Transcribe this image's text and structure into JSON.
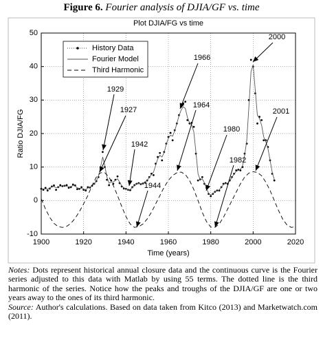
{
  "figure": {
    "label": "Figure 6.",
    "caption": "Fourier analysis of DJIA/GF vs. time"
  },
  "chart_data": {
    "type": "line",
    "title": "Plot DJIA/FG vs time",
    "xlabel": "Time (years)",
    "ylabel": "Ratio DJIA/FG",
    "x": [
      1900,
      1901,
      1902,
      1903,
      1904,
      1905,
      1906,
      1907,
      1908,
      1909,
      1910,
      1911,
      1912,
      1913,
      1914,
      1915,
      1916,
      1917,
      1918,
      1919,
      1920,
      1921,
      1922,
      1923,
      1924,
      1925,
      1926,
      1927,
      1928,
      1929,
      1930,
      1931,
      1932,
      1933,
      1934,
      1935,
      1936,
      1937,
      1938,
      1939,
      1940,
      1941,
      1942,
      1943,
      1944,
      1945,
      1946,
      1947,
      1948,
      1949,
      1950,
      1951,
      1952,
      1953,
      1954,
      1955,
      1956,
      1957,
      1958,
      1959,
      1960,
      1961,
      1962,
      1963,
      1964,
      1965,
      1966,
      1967,
      1968,
      1969,
      1970,
      1971,
      1972,
      1973,
      1974,
      1975,
      1976,
      1977,
      1978,
      1979,
      1980,
      1981,
      1982,
      1983,
      1984,
      1985,
      1986,
      1987,
      1988,
      1989,
      1990,
      1991,
      1992,
      1993,
      1994,
      1995,
      1996,
      1997,
      1998,
      1999,
      2000,
      2001,
      2002,
      2003,
      2004,
      2005,
      2006,
      2007,
      2008,
      2009,
      2010
    ],
    "series": [
      {
        "name": "History Data",
        "color": "#000000",
        "style": "markers",
        "values": [
          3.5,
          3.2,
          3.8,
          3.0,
          3.6,
          4.2,
          4.5,
          3.2,
          4.0,
          4.6,
          4.3,
          4.4,
          4.6,
          3.8,
          4.0,
          4.8,
          4.5,
          3.4,
          3.5,
          4.0,
          3.2,
          3.0,
          4.0,
          3.9,
          4.4,
          5.0,
          5.8,
          7.0,
          9.8,
          14.5,
          10.0,
          6.2,
          4.6,
          6.0,
          5.0,
          6.2,
          7.2,
          5.2,
          4.2,
          3.6,
          3.5,
          3.2,
          3.1,
          4.0,
          4.6,
          5.0,
          5.2,
          4.9,
          5.1,
          5.4,
          6.0,
          7.0,
          8.0,
          7.6,
          11.0,
          13.0,
          14.2,
          12.0,
          14.5,
          17.0,
          19.0,
          20.2,
          18.0,
          21.0,
          23.0,
          25.5,
          28.0,
          29.0,
          29.5,
          24.0,
          23.0,
          23.2,
          22.0,
          14.0,
          6.0,
          6.3,
          7.0,
          5.0,
          3.8,
          2.0,
          1.3,
          2.0,
          2.6,
          3.0,
          3.0,
          4.0,
          5.0,
          5.2,
          5.0,
          6.0,
          7.0,
          8.0,
          9.0,
          9.2,
          9.0,
          10.0,
          14.0,
          17.0,
          30.0,
          42.0,
          40.0,
          32.0,
          23.0,
          25.0,
          24.0,
          18.0,
          18.0,
          16.0,
          12.0,
          8.0,
          6.0
        ]
      },
      {
        "name": "Fourier Model",
        "color": "#555555",
        "style": "solid",
        "values": [
          3.4,
          3.5,
          3.5,
          3.4,
          3.7,
          4.1,
          4.2,
          3.8,
          3.9,
          4.3,
          4.4,
          4.4,
          4.3,
          4.1,
          4.2,
          4.5,
          4.3,
          3.8,
          3.6,
          3.7,
          3.4,
          3.3,
          3.7,
          4.0,
          4.5,
          5.0,
          5.9,
          7.2,
          10.0,
          13.0,
          10.5,
          7.0,
          5.2,
          5.5,
          5.5,
          6.0,
          6.5,
          5.5,
          4.4,
          3.8,
          3.5,
          3.3,
          3.3,
          3.8,
          4.5,
          5.0,
          5.1,
          5.0,
          5.2,
          5.5,
          6.1,
          6.9,
          7.7,
          8.5,
          10.5,
          12.5,
          13.5,
          13.0,
          14.3,
          16.8,
          18.6,
          19.5,
          19.2,
          20.8,
          23.0,
          25.3,
          27.0,
          28.0,
          27.5,
          24.8,
          23.2,
          22.6,
          20.5,
          14.5,
          8.0,
          6.2,
          6.5,
          5.3,
          3.6,
          2.2,
          1.6,
          2.0,
          2.6,
          2.9,
          3.2,
          4.0,
          4.8,
          5.1,
          5.2,
          5.9,
          6.9,
          7.9,
          8.7,
          9.0,
          9.3,
          10.4,
          13.5,
          18.0,
          28.0,
          38.5,
          40.5,
          33.0,
          25.5,
          24.5,
          22.5,
          19.0,
          17.5,
          15.5,
          12.0,
          8.5,
          6.2
        ]
      },
      {
        "name": "Third Harmonic",
        "color": "#000000",
        "style": "dashed",
        "x": [
          1900,
          1902,
          1904,
          1906,
          1908,
          1910,
          1912,
          1914,
          1916,
          1918,
          1920,
          1922,
          1924,
          1926,
          1928,
          1930,
          1932,
          1934,
          1936,
          1938,
          1940,
          1942,
          1944,
          1946,
          1948,
          1950,
          1952,
          1954,
          1956,
          1958,
          1960,
          1962,
          1964,
          1966,
          1968,
          1970,
          1972,
          1974,
          1976,
          1978,
          1980,
          1982,
          1984,
          1986,
          1988,
          1990,
          1992,
          1994,
          1996,
          1998,
          2000,
          2002,
          2004,
          2006,
          2008,
          2010,
          2012,
          2014,
          2016,
          2018,
          2020
        ],
        "values": [
          0.5,
          -2.5,
          -5,
          -6.8,
          -7.8,
          -8,
          -7.7,
          -6.8,
          -5.3,
          -3.3,
          -1,
          1.5,
          4.5,
          7,
          8.3,
          8.3,
          7,
          4.5,
          1.5,
          -1.8,
          -4.8,
          -7,
          -8,
          -7.8,
          -7,
          -5.5,
          -3.5,
          -1,
          1.5,
          4,
          6,
          7.5,
          8.3,
          8.5,
          7.8,
          6,
          3.3,
          0,
          -3.5,
          -6.3,
          -7.9,
          -8,
          -7,
          -5,
          -2.5,
          0,
          2.5,
          5,
          7,
          8.2,
          8.6,
          8.4,
          7.4,
          5.5,
          3,
          0,
          -3,
          -5.6,
          -7.3,
          -8,
          -7.8
        ]
      }
    ],
    "xlim": [
      1900,
      2020
    ],
    "xticks": [
      1900,
      1920,
      1940,
      1960,
      1980,
      2000,
      2020
    ],
    "ylim": [
      -10,
      50
    ],
    "yticks": [
      -10,
      0,
      10,
      20,
      30,
      40,
      50
    ],
    "grid": true,
    "legend": "upper left",
    "annotations": [
      {
        "text": "1929"
      },
      {
        "text": "1927"
      },
      {
        "text": "1942"
      },
      {
        "text": "1944"
      },
      {
        "text": "1966"
      },
      {
        "text": "1964"
      },
      {
        "text": "1980"
      },
      {
        "text": "1982"
      },
      {
        "text": "2000"
      },
      {
        "text": "2001"
      }
    ]
  },
  "notes": {
    "label": "Notes:",
    "text": "Dots represent historical annual closure data and the continuous curve is the Fourier series adjusted to this data with Matlab by using 55 terms. The dotted line is the third harmonic of the series. Notice how the peaks and troughs of the DJIA/GF are one or two years away to the ones of its third harmonic."
  },
  "source": {
    "label": "Source:",
    "text": "Author's calculations. Based on data taken from Kitco (2013) and Marketwatch.com (2011)."
  }
}
